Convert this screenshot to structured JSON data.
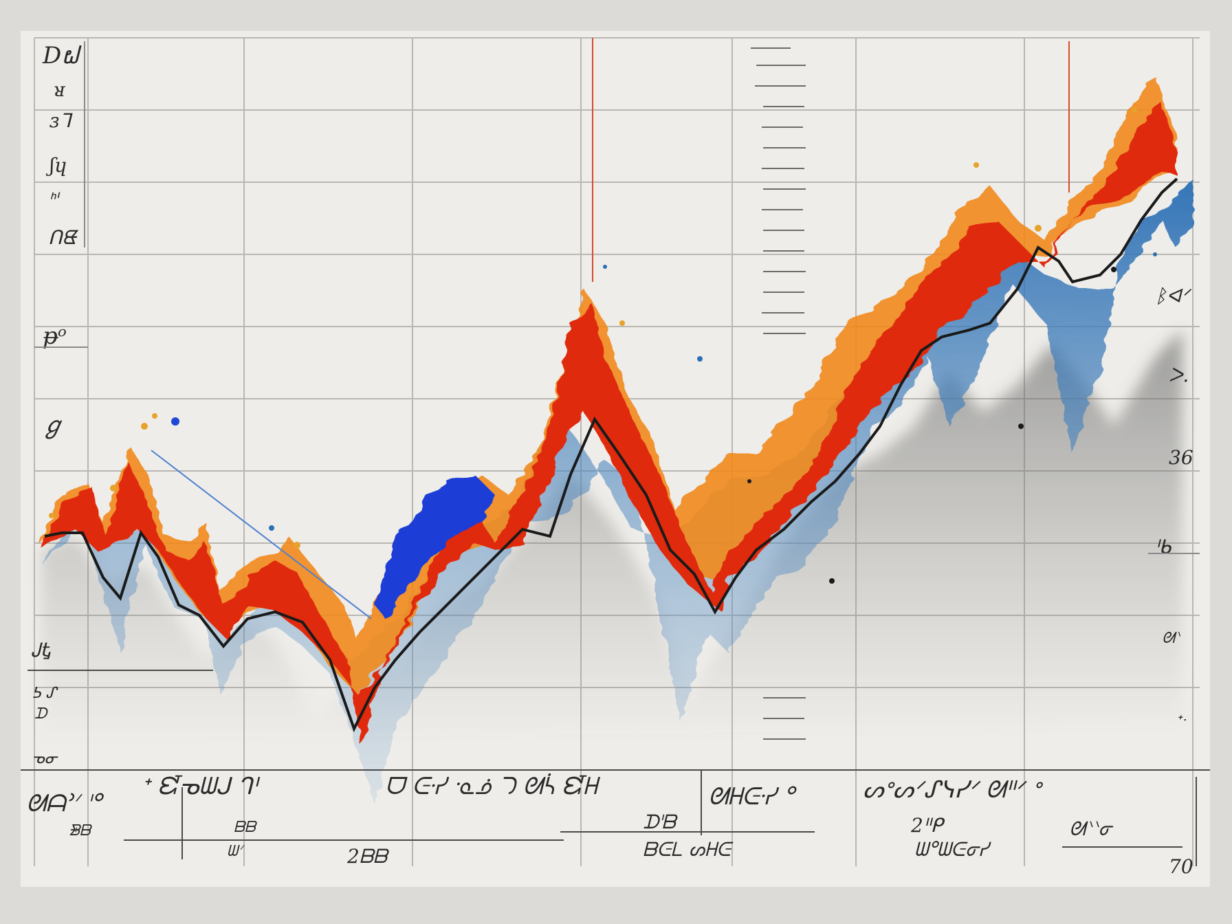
{
  "canvas": {
    "paper_color": "#eeede9",
    "grid_color": "#b9b7b2",
    "ink_color": "#2a2a2a",
    "wash_colors": [
      "#e02a10",
      "#f47a12",
      "#e9a21c",
      "#2b6fb5",
      "#1c3ed6",
      "#6a6a6a"
    ]
  },
  "left_scribbles": [
    "Dຝ",
    "ᴚ",
    "ɜᒣ",
    "ʃɥ",
    "ᑋᑊ",
    "ᑎᘀ",
    "ᵽᵒ",
    "ℊ",
    "ᎫᎿ",
    "ᕊ ᔑ",
    "ᗪ",
    "ᓀᓂ"
  ],
  "right_scribbles": [
    "ᛒᐊᐟ",
    "ᐳ.",
    "36",
    "ᑊᑲ",
    "ᘛᐠ",
    "ᐩᐧ"
  ],
  "bottom_labels": {
    "line1": [
      "ᘛᗩᐣᐟ ᑊᐤ",
      "ᐩ ᘿᓀᗯᒍ ᒉᑊ",
      "ᗜ ᕮᓸ ᓋᓅ ᘄ ᘛᓵ ᘿᕼ",
      "ᘛᕼᕮᓸ ᐤ",
      "ᔕᐤᔕᐟᔑᓭᓯᐟ ᘛᐦᐟ ᐤ"
    ],
    "line2": [
      "ᗾᗷ",
      "ᗷᗷ",
      "ᗯᐟ",
      "2ᗷᗷ"
    ],
    "tail": [
      "ᗪᑊᗷ",
      "ᗷᕮᒪ ᔕᕼᕮ",
      "2ᑊᑊᑭ",
      "ᘛᐠᐠᓂ",
      "ᗯᐤᗯᕮᓂᓯ",
      "70"
    ]
  }
}
